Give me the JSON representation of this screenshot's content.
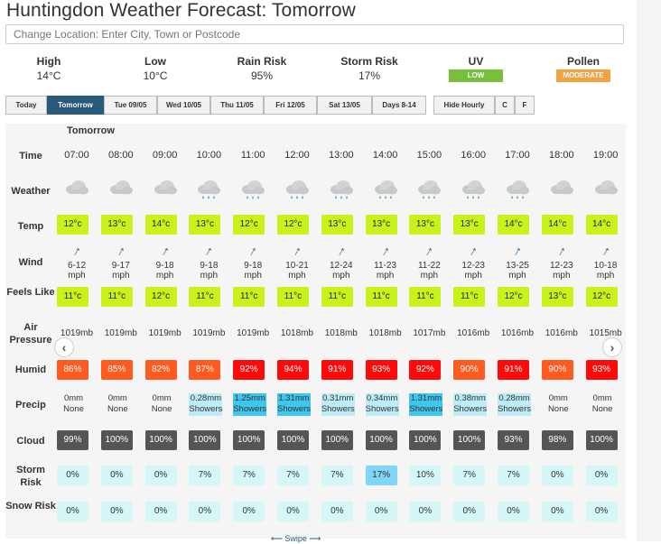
{
  "title": "Huntingdon Weather Forecast: Tomorrow",
  "search": {
    "placeholder": "Change Location: Enter City, Town or Postcode"
  },
  "summary": {
    "high": {
      "label": "High",
      "value": "14°C"
    },
    "low": {
      "label": "Low",
      "value": "10°C"
    },
    "rain": {
      "label": "Rain Risk",
      "value": "95%"
    },
    "storm": {
      "label": "Storm Risk",
      "value": "17%"
    },
    "uv": {
      "label": "UV",
      "value": "LOW",
      "color": "#79c03a"
    },
    "pollen": {
      "label": "Pollen",
      "value": "MODERATE",
      "color": "#f0a340"
    }
  },
  "tabs": [
    "Today",
    "Tomorrow",
    "Tue 09/05",
    "Wed 10/05",
    "Thu 11/05",
    "Fri 12/05",
    "Sat 13/05",
    "Days 8-14",
    "Hide Hourly",
    "C",
    "F"
  ],
  "active_tab": "Tomorrow",
  "day_label": "Tomorrow",
  "row_labels": {
    "time": "Time",
    "weather": "Weather",
    "temp": "Temp",
    "wind": "Wind",
    "feels": "Feels Like",
    "air": "Air Pressure",
    "humid": "Humid",
    "precip": "Precip",
    "cloud": "Cloud",
    "storm": "Storm Risk",
    "snow": "Snow Risk"
  },
  "hours": [
    {
      "time": "07:00",
      "icon": "cloud-icon",
      "temp": "12°c",
      "wind": "6-12",
      "feels": "11°c",
      "air": "1019mb",
      "humid": "86%",
      "precip_amt": "0mm",
      "precip_type": "None",
      "cloud": "99%",
      "storm": "0%",
      "snow": "0%"
    },
    {
      "time": "08:00",
      "icon": "cloud-icon",
      "temp": "13°c",
      "wind": "9-17",
      "feels": "11°c",
      "air": "1019mb",
      "humid": "85%",
      "precip_amt": "0mm",
      "precip_type": "None",
      "cloud": "100%",
      "storm": "0%",
      "snow": "0%"
    },
    {
      "time": "09:00",
      "icon": "cloud-icon",
      "temp": "14°c",
      "wind": "9-18",
      "feels": "12°c",
      "air": "1019mb",
      "humid": "82%",
      "precip_amt": "0mm",
      "precip_type": "None",
      "cloud": "100%",
      "storm": "0%",
      "snow": "0%"
    },
    {
      "time": "10:00",
      "icon": "rain-cloud-icon",
      "temp": "13°c",
      "wind": "9-18",
      "feels": "11°c",
      "air": "1019mb",
      "humid": "87%",
      "precip_amt": "0.28mm",
      "precip_type": "Showers",
      "cloud": "100%",
      "storm": "7%",
      "snow": "0%"
    },
    {
      "time": "11:00",
      "icon": "rain-cloud-icon",
      "temp": "12°c",
      "wind": "9-18",
      "feels": "11°c",
      "air": "1019mb",
      "humid": "92%",
      "precip_amt": "1.25mm",
      "precip_type": "Showers",
      "cloud": "100%",
      "storm": "7%",
      "snow": "0%"
    },
    {
      "time": "12:00",
      "icon": "rain-cloud-icon",
      "temp": "12°c",
      "wind": "10-21",
      "feels": "11°c",
      "air": "1018mb",
      "humid": "94%",
      "precip_amt": "1.31mm",
      "precip_type": "Showers",
      "cloud": "100%",
      "storm": "7%",
      "snow": "0%"
    },
    {
      "time": "13:00",
      "icon": "rain-cloud-icon",
      "temp": "13°c",
      "wind": "12-24",
      "feels": "11°c",
      "air": "1018mb",
      "humid": "91%",
      "precip_amt": "0.31mm",
      "precip_type": "Showers",
      "cloud": "100%",
      "storm": "7%",
      "snow": "0%"
    },
    {
      "time": "14:00",
      "icon": "rain-cloud-icon",
      "temp": "13°c",
      "wind": "11-23",
      "feels": "11°c",
      "air": "1018mb",
      "humid": "93%",
      "precip_amt": "0.34mm",
      "precip_type": "Showers",
      "cloud": "100%",
      "storm": "17%",
      "snow": "0%"
    },
    {
      "time": "15:00",
      "icon": "rain-cloud-icon",
      "temp": "13°c",
      "wind": "11-22",
      "feels": "11°c",
      "air": "1017mb",
      "humid": "92%",
      "precip_amt": "1.31mm",
      "precip_type": "Showers",
      "cloud": "100%",
      "storm": "10%",
      "snow": "0%"
    },
    {
      "time": "16:00",
      "icon": "rain-cloud-icon",
      "temp": "13°c",
      "wind": "12-23",
      "feels": "11°c",
      "air": "1016mb",
      "humid": "90%",
      "precip_amt": "0.38mm",
      "precip_type": "Showers",
      "cloud": "100%",
      "storm": "7%",
      "snow": "0%"
    },
    {
      "time": "17:00",
      "icon": "rain-cloud-icon",
      "temp": "14°c",
      "wind": "13-25",
      "feels": "12°c",
      "air": "1016mb",
      "humid": "91%",
      "precip_amt": "0.28mm",
      "precip_type": "Showers",
      "cloud": "93%",
      "storm": "7%",
      "snow": "0%"
    },
    {
      "time": "18:00",
      "icon": "cloud-icon",
      "temp": "14°c",
      "wind": "12-23",
      "feels": "13°c",
      "air": "1016mb",
      "humid": "90%",
      "precip_amt": "0mm",
      "precip_type": "None",
      "cloud": "98%",
      "storm": "0%",
      "snow": "0%"
    },
    {
      "time": "19:00",
      "icon": "cloud-icon",
      "temp": "14°c",
      "wind": "10-18",
      "feels": "12°c",
      "air": "1015mb",
      "humid": "93%",
      "precip_amt": "0mm",
      "precip_type": "None",
      "cloud": "100%",
      "storm": "0%",
      "snow": "0%"
    }
  ],
  "wind_unit": "mph",
  "swipe_text": "Swipe",
  "colors": {
    "temp_box": "#c8f21a",
    "humid_orange": "#ff5a1f",
    "humid_red": "#ff0a0a",
    "precip_light": "#bdecf6",
    "precip_strong": "#3fc6ec",
    "cloud_box": "#555555",
    "risk_box": "#d6f7f7",
    "risk_high": "#7fd6f5",
    "tab_active": "#2a5a7b"
  }
}
